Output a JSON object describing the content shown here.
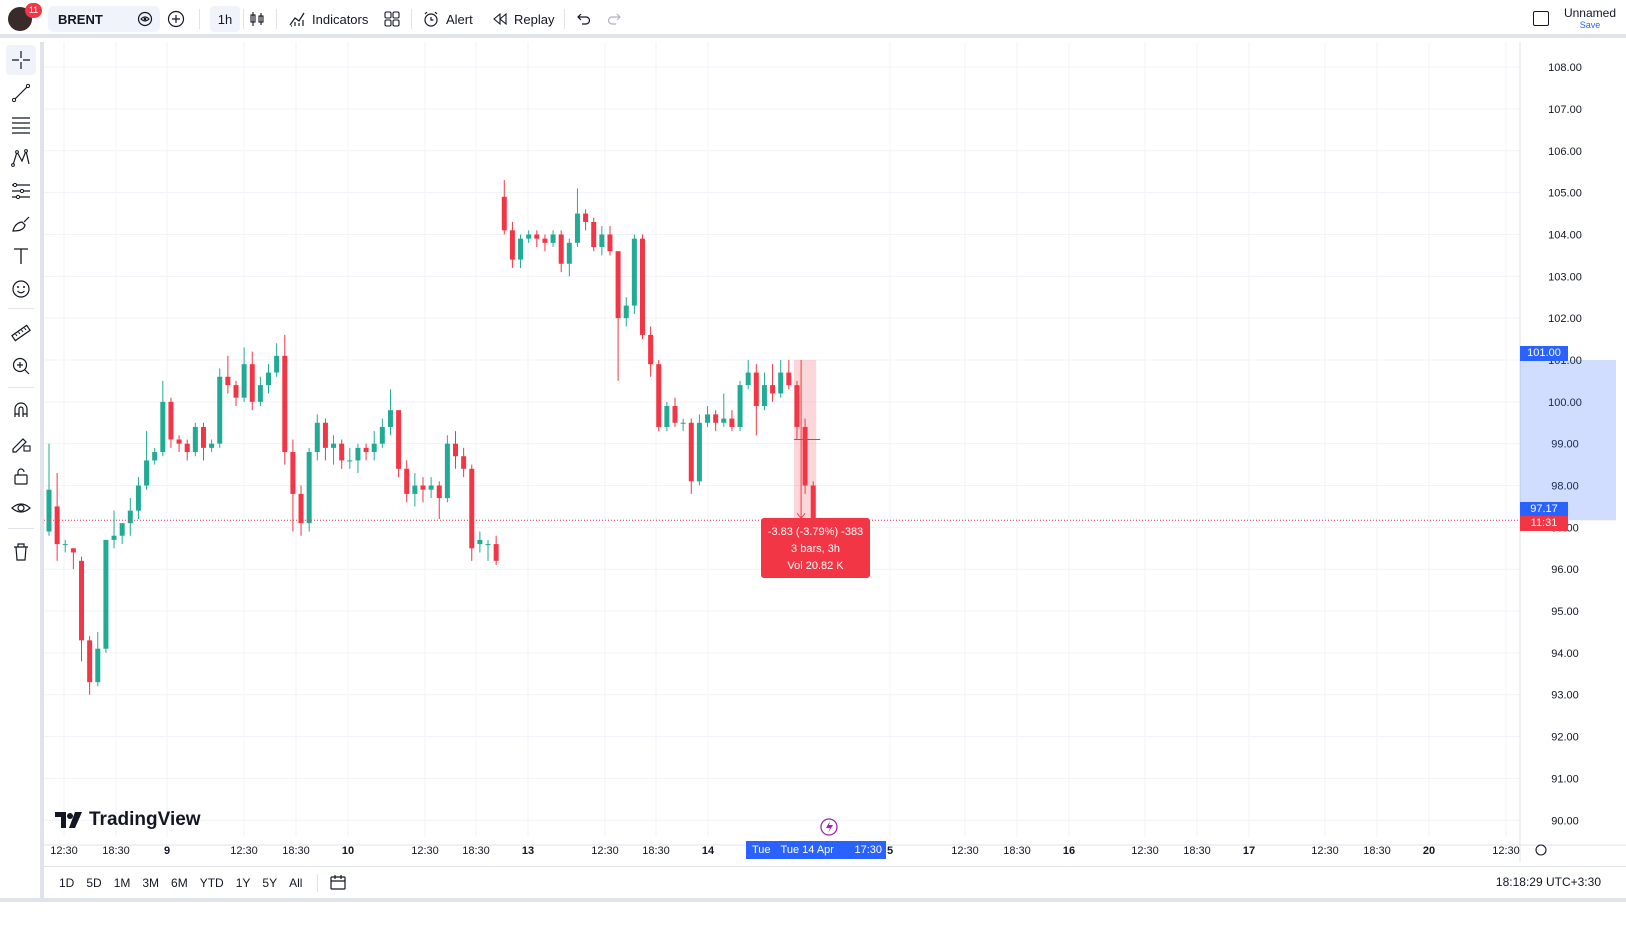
{
  "topbar": {
    "notification_count": "11",
    "symbol": "BRENT",
    "interval": "1h",
    "indicators_label": "Indicators",
    "alert_label": "Alert",
    "replay_label": "Replay",
    "layout_name": "Unnamed",
    "layout_save": "Save"
  },
  "bottombar": {
    "ranges": [
      "1D",
      "5D",
      "1M",
      "3M",
      "6M",
      "YTD",
      "1Y",
      "5Y",
      "All"
    ],
    "clock": "18:18:29 UTC+3:30"
  },
  "brand": "TradingView",
  "price_axis": {
    "labels": [
      "108.00",
      "107.00",
      "106.00",
      "105.00",
      "104.00",
      "103.00",
      "102.00",
      "101.00",
      "100.00",
      "99.00",
      "98.00",
      "97.00",
      "96.00",
      "95.00",
      "94.00",
      "93.00",
      "92.00",
      "91.00",
      "90.00"
    ],
    "range_top_tag": "101.00",
    "last_price_tag": "97.17",
    "countdown_tag": "11:31"
  },
  "time_axis": {
    "labels": [
      "12:30",
      "18:30",
      "9",
      "12:30",
      "18:30",
      "10",
      "12:30",
      "18:30",
      "13",
      "12:30",
      "18:30",
      "14",
      "5",
      "12:30",
      "18:30",
      "16",
      "12:30",
      "18:30",
      "17",
      "12:30",
      "18:30",
      "20",
      "12:30"
    ],
    "selected_range_tag": [
      "Tue",
      "Tue 14 Apr '26",
      "17:30"
    ]
  },
  "measure": {
    "line1": "-3.83 (-3.79%) -383",
    "line2": "3 bars, 3h",
    "line3": "Vol 20.82 K"
  },
  "colors": {
    "up": "#22ab94",
    "down": "#f23645",
    "accent": "#2962ff",
    "grid": "#f0f3fa"
  },
  "chart_data": {
    "type": "candlestick",
    "symbol": "BRENT",
    "interval": "1h",
    "ylim": [
      89.6,
      108.6
    ],
    "last_price": 97.17,
    "candles": [
      [
        96.9,
        97.9,
        99.0,
        96.8
      ],
      [
        97.5,
        96.6,
        98.3,
        96.2
      ],
      [
        96.6,
        96.6,
        96.7,
        96.4
      ],
      [
        96.5,
        96.4,
        96.5,
        96.0
      ],
      [
        96.2,
        94.3,
        96.3,
        93.8
      ],
      [
        94.3,
        93.3,
        94.4,
        93.0
      ],
      [
        93.3,
        94.1,
        94.5,
        93.2
      ],
      [
        94.1,
        96.7,
        96.7,
        94.0
      ],
      [
        96.7,
        96.8,
        97.4,
        96.5
      ],
      [
        96.8,
        97.1,
        97.1,
        96.6
      ],
      [
        97.1,
        97.4,
        97.7,
        96.8
      ],
      [
        97.4,
        98.0,
        98.2,
        97.2
      ],
      [
        98.0,
        98.6,
        99.3,
        97.9
      ],
      [
        98.6,
        98.8,
        98.9,
        98.5
      ],
      [
        98.8,
        100.0,
        100.5,
        98.7
      ],
      [
        100.0,
        99.1,
        100.1,
        98.9
      ],
      [
        99.1,
        99.0,
        99.2,
        98.8
      ],
      [
        99.0,
        98.8,
        99.1,
        98.6
      ],
      [
        98.8,
        99.4,
        99.5,
        98.7
      ],
      [
        99.4,
        98.9,
        99.5,
        98.6
      ],
      [
        98.9,
        99.0,
        99.1,
        98.8
      ],
      [
        99.0,
        100.6,
        100.8,
        98.9
      ],
      [
        100.6,
        100.4,
        101.1,
        100.2
      ],
      [
        100.4,
        100.1,
        100.5,
        99.9
      ],
      [
        100.1,
        100.9,
        101.3,
        100.0
      ],
      [
        100.9,
        100.0,
        101.2,
        99.8
      ],
      [
        100.0,
        100.4,
        100.6,
        99.9
      ],
      [
        100.4,
        100.7,
        100.9,
        100.2
      ],
      [
        100.7,
        101.1,
        101.4,
        100.6
      ],
      [
        101.1,
        98.8,
        101.6,
        98.5
      ],
      [
        98.8,
        97.8,
        99.1,
        96.9
      ],
      [
        97.8,
        97.1,
        98.0,
        96.8
      ],
      [
        97.1,
        98.8,
        98.9,
        96.9
      ],
      [
        98.8,
        99.5,
        99.7,
        98.6
      ],
      [
        99.5,
        98.9,
        99.6,
        98.6
      ],
      [
        98.9,
        99.0,
        99.2,
        98.5
      ],
      [
        99.0,
        98.6,
        99.1,
        98.4
      ],
      [
        98.6,
        98.6,
        98.9,
        98.4
      ],
      [
        98.6,
        98.9,
        99.0,
        98.3
      ],
      [
        98.9,
        98.8,
        99.0,
        98.6
      ],
      [
        98.8,
        99.0,
        99.3,
        98.6
      ],
      [
        99.0,
        99.4,
        99.6,
        98.9
      ],
      [
        99.4,
        99.8,
        100.3,
        99.2
      ],
      [
        99.8,
        98.4,
        99.8,
        98.2
      ],
      [
        98.4,
        97.8,
        98.6,
        97.6
      ],
      [
        97.8,
        98.0,
        98.3,
        97.5
      ],
      [
        98.0,
        97.9,
        98.2,
        97.6
      ],
      [
        97.9,
        98.0,
        98.2,
        97.7
      ],
      [
        98.0,
        97.7,
        98.1,
        97.2
      ],
      [
        97.7,
        99.0,
        99.2,
        97.6
      ],
      [
        99.0,
        98.7,
        99.3,
        98.4
      ],
      [
        98.7,
        98.4,
        98.9,
        98.2
      ],
      [
        98.4,
        96.5,
        98.5,
        96.2
      ],
      [
        96.6,
        96.7,
        96.9,
        96.4
      ],
      [
        96.6,
        96.6,
        96.7,
        96.2
      ],
      [
        96.6,
        96.2,
        96.8,
        96.1
      ],
      [
        104.9,
        104.1,
        105.3,
        104.0
      ],
      [
        104.1,
        103.4,
        104.3,
        103.2
      ],
      [
        103.4,
        103.9,
        104.0,
        103.2
      ],
      [
        103.9,
        104.0,
        104.1,
        103.8
      ],
      [
        104.0,
        103.9,
        104.1,
        103.7
      ],
      [
        103.9,
        103.8,
        104.0,
        103.6
      ],
      [
        103.8,
        104.0,
        104.1,
        103.7
      ],
      [
        104.0,
        103.3,
        104.1,
        103.1
      ],
      [
        103.3,
        103.8,
        103.9,
        103.0
      ],
      [
        103.8,
        104.5,
        105.1,
        103.7
      ],
      [
        104.5,
        104.3,
        104.6,
        104.1
      ],
      [
        104.3,
        103.7,
        104.4,
        103.6
      ],
      [
        103.7,
        104.0,
        104.2,
        103.5
      ],
      [
        104.0,
        103.6,
        104.2,
        103.5
      ],
      [
        103.6,
        102.0,
        103.6,
        100.5
      ],
      [
        102.0,
        102.3,
        102.5,
        101.8
      ],
      [
        102.3,
        103.9,
        104.0,
        102.1
      ],
      [
        103.9,
        101.6,
        104.0,
        101.5
      ],
      [
        101.6,
        100.9,
        101.8,
        100.6
      ],
      [
        100.9,
        99.4,
        101.0,
        99.3
      ],
      [
        99.4,
        99.9,
        100.0,
        99.3
      ],
      [
        99.9,
        99.5,
        100.1,
        99.4
      ],
      [
        99.5,
        99.5,
        99.6,
        99.3
      ],
      [
        99.5,
        98.1,
        99.6,
        97.8
      ],
      [
        98.1,
        99.5,
        99.7,
        98.0
      ],
      [
        99.5,
        99.7,
        99.9,
        99.4
      ],
      [
        99.7,
        99.5,
        99.8,
        99.3
      ],
      [
        99.5,
        99.6,
        100.2,
        99.4
      ],
      [
        99.6,
        99.4,
        99.8,
        99.3
      ],
      [
        99.4,
        100.4,
        100.5,
        99.3
      ],
      [
        100.4,
        100.7,
        101.0,
        100.3
      ],
      [
        100.7,
        99.9,
        100.9,
        99.2
      ],
      [
        99.9,
        100.4,
        100.7,
        99.8
      ],
      [
        100.4,
        100.2,
        100.9,
        100.0
      ],
      [
        100.2,
        100.7,
        101.0,
        100.1
      ],
      [
        100.7,
        100.4,
        101.0,
        100.3
      ],
      [
        100.4,
        99.4,
        100.5,
        99.1
      ],
      [
        99.4,
        98.0,
        99.6,
        97.8
      ],
      [
        98.0,
        97.2,
        98.1,
        97.1
      ]
    ],
    "measure_range": {
      "from": 101.0,
      "to": 97.17,
      "change": "-3.83",
      "change_pct": "-3.79%",
      "bars": 3
    }
  }
}
